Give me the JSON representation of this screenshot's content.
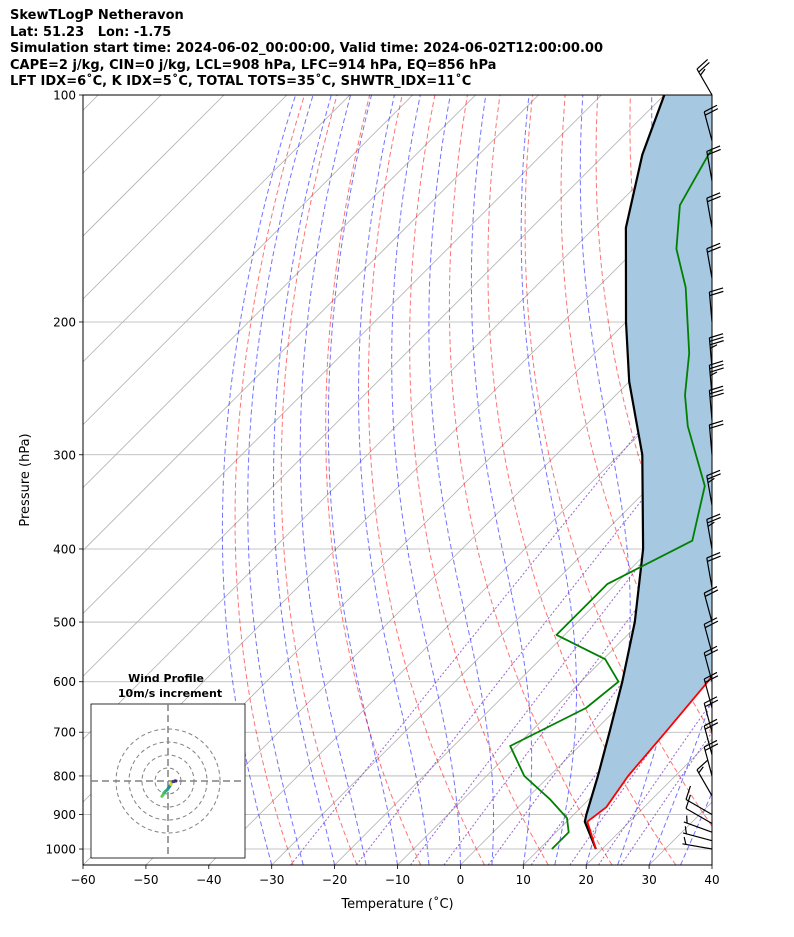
{
  "header": {
    "lines": [
      "SkewTLogP Netheravon",
      "Lat: 51.23   Lon: -1.75",
      "Simulation start time: 2024-06-02_00:00:00, Valid time: 2024-06-02T12:00:00.00",
      "CAPE=2 j/kg, CIN=0 j/kg, LCL=908 hPa, LFC=914 hPa, EQ=856 hPa",
      "LFT IDX=6˚C, K IDX=5˚C, TOTAL TOTS=35˚C, SHWTR_IDX=11˚C"
    ]
  },
  "chart_data": {
    "type": "line",
    "title": "SkewTLogP Netheravon",
    "xlabel": "Temperature (˚C)",
    "ylabel": "Pressure (hPa)",
    "xlim": [
      -60,
      40
    ],
    "ylim": [
      1050,
      100
    ],
    "yscale": "log",
    "skew": true,
    "grid": true,
    "x_ticks": [
      "−60",
      "−50",
      "−40",
      "−30",
      "−20",
      "−10",
      "0",
      "10",
      "20",
      "30",
      "40"
    ],
    "y_ticks": [
      100,
      200,
      300,
      400,
      500,
      600,
      700,
      800,
      900,
      1000
    ],
    "series": [
      {
        "role": "temperature",
        "color": "#ff0000",
        "points": [
          [
            19.0,
            1000
          ],
          [
            13.3,
            920
          ],
          [
            14.0,
            880
          ],
          [
            12.5,
            800
          ],
          [
            11.5,
            700
          ],
          [
            10.2,
            600
          ],
          [
            7.2,
            500
          ],
          [
            2.4,
            400
          ],
          [
            -6.1,
            300
          ],
          [
            -14.0,
            250
          ],
          [
            -15.0,
            220
          ],
          [
            -22.0,
            180
          ],
          [
            -29.3,
            150
          ],
          [
            -36.7,
            130
          ],
          [
            -40.0,
            120
          ],
          [
            -45.4,
            110
          ],
          [
            -49.6,
            100
          ]
        ]
      },
      {
        "role": "dewpoint",
        "color": "#008000",
        "points": [
          [
            12.0,
            1000
          ],
          [
            12.0,
            950
          ],
          [
            9.5,
            910
          ],
          [
            3.9,
            860
          ],
          [
            -4.0,
            800
          ],
          [
            -11.0,
            730
          ],
          [
            -5.0,
            650
          ],
          [
            -4.0,
            600
          ],
          [
            -9.7,
            560
          ],
          [
            -21.3,
            520
          ],
          [
            -21.3,
            490
          ],
          [
            -21.3,
            445
          ],
          [
            -14.7,
            390
          ],
          [
            -21.4,
            330
          ],
          [
            -33.6,
            275
          ],
          [
            -39.0,
            250
          ],
          [
            -45.0,
            220
          ],
          [
            -56.0,
            180
          ],
          [
            -63.6,
            160
          ],
          [
            -70.0,
            140
          ],
          [
            -73.5,
            120
          ],
          [
            -77.0,
            100
          ]
        ]
      },
      {
        "role": "parcel",
        "color": "#000000",
        "points": [
          [
            19.0,
            1000
          ],
          [
            12.9,
            920
          ],
          [
            12.0,
            900
          ],
          [
            7.7,
            800
          ],
          [
            2.6,
            700
          ],
          [
            -3.4,
            600
          ],
          [
            -10.9,
            500
          ],
          [
            -21.2,
            400
          ],
          [
            -36.3,
            300
          ],
          [
            -50.0,
            240
          ],
          [
            -60.0,
            200
          ],
          [
            -75.0,
            150
          ],
          [
            -84.0,
            120
          ],
          [
            -90.0,
            100
          ]
        ]
      }
    ],
    "shaded_region": {
      "between": [
        "parcel",
        "temperature"
      ],
      "color": "#a6c8e0"
    },
    "reference_lines": {
      "isotherms_step": 10,
      "dry_adiabats_theta": [
        -30,
        -20,
        -10,
        0,
        10,
        20,
        30,
        40,
        50,
        60,
        70,
        80,
        90,
        100,
        110,
        120,
        130,
        140,
        150,
        160
      ],
      "moist_adiabats_start": [
        -30,
        -25,
        -20,
        -15,
        -10,
        -5,
        0,
        5,
        10,
        15,
        20,
        25,
        30,
        35
      ],
      "mixing_ratios": [
        0.4,
        1,
        2,
        3,
        5,
        8,
        12,
        16,
        20
      ]
    },
    "wind_barbs": [
      {
        "p": 1000,
        "speed": 5,
        "dir": 280
      },
      {
        "p": 975,
        "speed": 5,
        "dir": 285
      },
      {
        "p": 950,
        "speed": 5,
        "dir": 290
      },
      {
        "p": 925,
        "speed": 10,
        "dir": 300
      },
      {
        "p": 900,
        "speed": 10,
        "dir": 300
      },
      {
        "p": 850,
        "speed": 15,
        "dir": 330
      },
      {
        "p": 800,
        "speed": 20,
        "dir": 345
      },
      {
        "p": 750,
        "speed": 20,
        "dir": 345
      },
      {
        "p": 700,
        "speed": 20,
        "dir": 345
      },
      {
        "p": 650,
        "speed": 20,
        "dir": 345
      },
      {
        "p": 600,
        "speed": 20,
        "dir": 345
      },
      {
        "p": 550,
        "speed": 20,
        "dir": 345
      },
      {
        "p": 500,
        "speed": 20,
        "dir": 345
      },
      {
        "p": 450,
        "speed": 20,
        "dir": 350
      },
      {
        "p": 400,
        "speed": 25,
        "dir": 350
      },
      {
        "p": 350,
        "speed": 25,
        "dir": 350
      },
      {
        "p": 300,
        "speed": 20,
        "dir": 355
      },
      {
        "p": 270,
        "speed": 30,
        "dir": 355
      },
      {
        "p": 250,
        "speed": 35,
        "dir": 355
      },
      {
        "p": 230,
        "speed": 35,
        "dir": 355
      },
      {
        "p": 200,
        "speed": 20,
        "dir": 355
      },
      {
        "p": 175,
        "speed": 20,
        "dir": 350
      },
      {
        "p": 150,
        "speed": 20,
        "dir": 350
      },
      {
        "p": 130,
        "speed": 20,
        "dir": 350
      },
      {
        "p": 115,
        "speed": 20,
        "dir": 345
      },
      {
        "p": 100,
        "speed": 25,
        "dir": 330
      }
    ],
    "inset": {
      "title": "Wind Profile",
      "subtitle": "10m/s increment",
      "ring_step_ms": 10,
      "hodograph": [
        [
          -4.7,
          -11.8
        ],
        [
          -3.9,
          -10.8
        ],
        [
          -3.3,
          -9.5
        ],
        [
          -2.5,
          -8.5
        ],
        [
          -1.5,
          -7.5
        ],
        [
          -0.6,
          -6.8
        ],
        [
          0.4,
          -5.3
        ],
        [
          1.3,
          -4.0
        ],
        [
          2.2,
          -2.7
        ],
        [
          2.7,
          -1.3
        ],
        [
          3.2,
          -0.9
        ],
        [
          3.8,
          -0.4
        ],
        [
          4.6,
          -0.4
        ],
        [
          5.2,
          0.0
        ],
        [
          5.7,
          0.1
        ],
        [
          6.2,
          0.0
        ]
      ],
      "hodograph_colors": [
        "#5ec962",
        "#5ec962",
        "#4ac16d",
        "#35b779",
        "#2eb37c",
        "#26a784",
        "#21918c",
        "#25858e",
        "#d5e21a",
        "#bddf26",
        "#a5db36",
        "#46337e",
        "#433e85",
        "#3b528b",
        "#482475",
        "#440154"
      ]
    }
  }
}
